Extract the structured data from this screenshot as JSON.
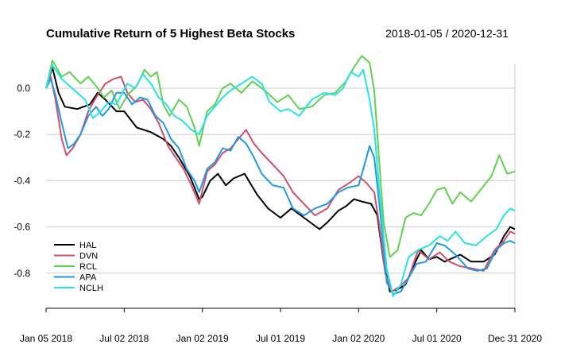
{
  "chart_data": {
    "type": "line",
    "title": "Cumulative Return of 5 Highest Beta Stocks",
    "date_range": "2018-01-05 / 2020-12-31",
    "xlabel": "",
    "ylabel": "",
    "ylim": [
      -0.92,
      0.14
    ],
    "yticks": [
      0.0,
      -0.2,
      -0.4,
      -0.6,
      -0.8
    ],
    "ytick_labels": [
      "0.0",
      "-0.2",
      "-0.4",
      "-0.6",
      "-0.8"
    ],
    "xticks": [
      {
        "t": 0.0,
        "label": "Jan 05 2018"
      },
      {
        "t": 0.5,
        "label": "Jul 02 2018"
      },
      {
        "t": 1.0,
        "label": "Jan 02 2019"
      },
      {
        "t": 1.5,
        "label": "Jul 01 2019"
      },
      {
        "t": 2.0,
        "label": "Jan 02 2020"
      },
      {
        "t": 2.5,
        "label": "Jul 01 2020"
      },
      {
        "t": 3.0,
        "label": "Dec 31 2020"
      }
    ],
    "grid": true,
    "legend_position": "bottom-left",
    "series": [
      {
        "name": "HAL",
        "color": "#000000",
        "points": [
          [
            0.0,
            0.0
          ],
          [
            0.04,
            0.09
          ],
          [
            0.08,
            -0.02
          ],
          [
            0.12,
            -0.08
          ],
          [
            0.2,
            -0.09
          ],
          [
            0.28,
            -0.07
          ],
          [
            0.33,
            -0.02
          ],
          [
            0.38,
            -0.05
          ],
          [
            0.45,
            -0.1
          ],
          [
            0.5,
            -0.1
          ],
          [
            0.58,
            -0.17
          ],
          [
            0.67,
            -0.19
          ],
          [
            0.75,
            -0.22
          ],
          [
            0.8,
            -0.25
          ],
          [
            0.85,
            -0.3
          ],
          [
            0.92,
            -0.38
          ],
          [
            0.98,
            -0.48
          ],
          [
            1.0,
            -0.47
          ],
          [
            1.05,
            -0.4
          ],
          [
            1.1,
            -0.37
          ],
          [
            1.15,
            -0.42
          ],
          [
            1.2,
            -0.39
          ],
          [
            1.27,
            -0.37
          ],
          [
            1.35,
            -0.46
          ],
          [
            1.42,
            -0.52
          ],
          [
            1.5,
            -0.56
          ],
          [
            1.57,
            -0.52
          ],
          [
            1.65,
            -0.56
          ],
          [
            1.75,
            -0.61
          ],
          [
            1.8,
            -0.58
          ],
          [
            1.87,
            -0.53
          ],
          [
            1.92,
            -0.51
          ],
          [
            1.97,
            -0.48
          ],
          [
            2.02,
            -0.49
          ],
          [
            2.08,
            -0.5
          ],
          [
            2.12,
            -0.55
          ],
          [
            2.16,
            -0.75
          ],
          [
            2.2,
            -0.88
          ],
          [
            2.25,
            -0.87
          ],
          [
            2.3,
            -0.85
          ],
          [
            2.35,
            -0.77
          ],
          [
            2.4,
            -0.7
          ],
          [
            2.45,
            -0.74
          ],
          [
            2.5,
            -0.73
          ],
          [
            2.55,
            -0.75
          ],
          [
            2.65,
            -0.72
          ],
          [
            2.72,
            -0.75
          ],
          [
            2.8,
            -0.75
          ],
          [
            2.87,
            -0.72
          ],
          [
            2.93,
            -0.64
          ],
          [
            2.97,
            -0.6
          ],
          [
            3.0,
            -0.61
          ]
        ]
      },
      {
        "name": "DVN",
        "color": "#d0506a",
        "points": [
          [
            0.0,
            0.0
          ],
          [
            0.03,
            0.05
          ],
          [
            0.06,
            -0.05
          ],
          [
            0.1,
            -0.22
          ],
          [
            0.13,
            -0.29
          ],
          [
            0.17,
            -0.26
          ],
          [
            0.22,
            -0.2
          ],
          [
            0.27,
            -0.1
          ],
          [
            0.32,
            -0.04
          ],
          [
            0.38,
            0.02
          ],
          [
            0.43,
            0.04
          ],
          [
            0.48,
            0.05
          ],
          [
            0.52,
            -0.02
          ],
          [
            0.57,
            -0.06
          ],
          [
            0.62,
            -0.05
          ],
          [
            0.67,
            -0.09
          ],
          [
            0.72,
            -0.15
          ],
          [
            0.78,
            -0.25
          ],
          [
            0.83,
            -0.3
          ],
          [
            0.88,
            -0.35
          ],
          [
            0.93,
            -0.42
          ],
          [
            0.98,
            -0.5
          ],
          [
            1.03,
            -0.36
          ],
          [
            1.08,
            -0.33
          ],
          [
            1.13,
            -0.28
          ],
          [
            1.18,
            -0.26
          ],
          [
            1.23,
            -0.22
          ],
          [
            1.28,
            -0.18
          ],
          [
            1.33,
            -0.24
          ],
          [
            1.38,
            -0.28
          ],
          [
            1.45,
            -0.33
          ],
          [
            1.52,
            -0.38
          ],
          [
            1.58,
            -0.45
          ],
          [
            1.65,
            -0.5
          ],
          [
            1.72,
            -0.55
          ],
          [
            1.8,
            -0.52
          ],
          [
            1.87,
            -0.44
          ],
          [
            1.94,
            -0.41
          ],
          [
            2.0,
            -0.38
          ],
          [
            2.05,
            -0.41
          ],
          [
            2.1,
            -0.45
          ],
          [
            2.13,
            -0.58
          ],
          [
            2.17,
            -0.8
          ],
          [
            2.21,
            -0.88
          ],
          [
            2.26,
            -0.86
          ],
          [
            2.32,
            -0.82
          ],
          [
            2.38,
            -0.7
          ],
          [
            2.45,
            -0.74
          ],
          [
            2.52,
            -0.71
          ],
          [
            2.58,
            -0.75
          ],
          [
            2.65,
            -0.77
          ],
          [
            2.73,
            -0.78
          ],
          [
            2.8,
            -0.79
          ],
          [
            2.87,
            -0.7
          ],
          [
            2.93,
            -0.66
          ],
          [
            2.97,
            -0.62
          ],
          [
            3.0,
            -0.63
          ]
        ]
      },
      {
        "name": "RCL",
        "color": "#61d04f",
        "points": [
          [
            0.0,
            0.0
          ],
          [
            0.04,
            0.12
          ],
          [
            0.1,
            0.05
          ],
          [
            0.15,
            0.07
          ],
          [
            0.22,
            0.02
          ],
          [
            0.27,
            0.05
          ],
          [
            0.32,
            0.01
          ],
          [
            0.37,
            -0.04
          ],
          [
            0.42,
            -0.01
          ],
          [
            0.47,
            -0.09
          ],
          [
            0.52,
            -0.03
          ],
          [
            0.58,
            0.01
          ],
          [
            0.63,
            0.08
          ],
          [
            0.67,
            0.05
          ],
          [
            0.71,
            0.07
          ],
          [
            0.75,
            -0.07
          ],
          [
            0.79,
            -0.12
          ],
          [
            0.85,
            -0.05
          ],
          [
            0.9,
            -0.08
          ],
          [
            0.95,
            -0.17
          ],
          [
            0.98,
            -0.25
          ],
          [
            1.03,
            -0.1
          ],
          [
            1.08,
            -0.07
          ],
          [
            1.13,
            0.0
          ],
          [
            1.18,
            0.02
          ],
          [
            1.25,
            -0.02
          ],
          [
            1.32,
            0.03
          ],
          [
            1.4,
            -0.01
          ],
          [
            1.48,
            -0.06
          ],
          [
            1.55,
            -0.03
          ],
          [
            1.62,
            -0.09
          ],
          [
            1.7,
            -0.08
          ],
          [
            1.78,
            -0.03
          ],
          [
            1.85,
            -0.02
          ],
          [
            1.92,
            0.03
          ],
          [
            1.97,
            0.09
          ],
          [
            2.02,
            0.14
          ],
          [
            2.07,
            0.11
          ],
          [
            2.1,
            -0.01
          ],
          [
            2.13,
            -0.3
          ],
          [
            2.16,
            -0.58
          ],
          [
            2.2,
            -0.73
          ],
          [
            2.25,
            -0.7
          ],
          [
            2.3,
            -0.56
          ],
          [
            2.35,
            -0.54
          ],
          [
            2.4,
            -0.55
          ],
          [
            2.45,
            -0.5
          ],
          [
            2.5,
            -0.44
          ],
          [
            2.55,
            -0.43
          ],
          [
            2.6,
            -0.5
          ],
          [
            2.65,
            -0.45
          ],
          [
            2.72,
            -0.49
          ],
          [
            2.78,
            -0.44
          ],
          [
            2.85,
            -0.38
          ],
          [
            2.9,
            -0.29
          ],
          [
            2.95,
            -0.37
          ],
          [
            3.0,
            -0.36
          ]
        ]
      },
      {
        "name": "APA",
        "color": "#2297e6",
        "points": [
          [
            0.0,
            0.0
          ],
          [
            0.03,
            0.04
          ],
          [
            0.06,
            -0.03
          ],
          [
            0.1,
            -0.15
          ],
          [
            0.14,
            -0.26
          ],
          [
            0.18,
            -0.24
          ],
          [
            0.22,
            -0.2
          ],
          [
            0.27,
            -0.12
          ],
          [
            0.32,
            -0.08
          ],
          [
            0.36,
            -0.12
          ],
          [
            0.4,
            -0.09
          ],
          [
            0.45,
            -0.02
          ],
          [
            0.5,
            -0.02
          ],
          [
            0.55,
            -0.07
          ],
          [
            0.6,
            -0.04
          ],
          [
            0.65,
            -0.05
          ],
          [
            0.7,
            -0.12
          ],
          [
            0.75,
            -0.15
          ],
          [
            0.8,
            -0.22
          ],
          [
            0.85,
            -0.26
          ],
          [
            0.9,
            -0.35
          ],
          [
            0.95,
            -0.4
          ],
          [
            0.98,
            -0.45
          ],
          [
            1.03,
            -0.35
          ],
          [
            1.08,
            -0.32
          ],
          [
            1.13,
            -0.26
          ],
          [
            1.18,
            -0.27
          ],
          [
            1.23,
            -0.21
          ],
          [
            1.28,
            -0.24
          ],
          [
            1.33,
            -0.3
          ],
          [
            1.38,
            -0.37
          ],
          [
            1.45,
            -0.42
          ],
          [
            1.52,
            -0.43
          ],
          [
            1.58,
            -0.52
          ],
          [
            1.65,
            -0.55
          ],
          [
            1.72,
            -0.52
          ],
          [
            1.8,
            -0.5
          ],
          [
            1.87,
            -0.45
          ],
          [
            1.93,
            -0.43
          ],
          [
            2.0,
            -0.42
          ],
          [
            2.03,
            -0.35
          ],
          [
            2.07,
            -0.25
          ],
          [
            2.1,
            -0.3
          ],
          [
            2.14,
            -0.55
          ],
          [
            2.18,
            -0.84
          ],
          [
            2.22,
            -0.89
          ],
          [
            2.27,
            -0.88
          ],
          [
            2.32,
            -0.82
          ],
          [
            2.37,
            -0.76
          ],
          [
            2.43,
            -0.75
          ],
          [
            2.5,
            -0.67
          ],
          [
            2.55,
            -0.68
          ],
          [
            2.62,
            -0.72
          ],
          [
            2.7,
            -0.78
          ],
          [
            2.76,
            -0.79
          ],
          [
            2.82,
            -0.78
          ],
          [
            2.88,
            -0.7
          ],
          [
            2.93,
            -0.67
          ],
          [
            2.97,
            -0.66
          ],
          [
            3.0,
            -0.67
          ]
        ]
      },
      {
        "name": "NCLH",
        "color": "#28e2e5",
        "points": [
          [
            0.0,
            0.0
          ],
          [
            0.04,
            0.1
          ],
          [
            0.1,
            0.04
          ],
          [
            0.15,
            0.01
          ],
          [
            0.2,
            -0.02
          ],
          [
            0.25,
            -0.05
          ],
          [
            0.3,
            -0.13
          ],
          [
            0.35,
            -0.1
          ],
          [
            0.4,
            -0.06
          ],
          [
            0.45,
            -0.07
          ],
          [
            0.52,
            0.02
          ],
          [
            0.57,
            0.0
          ],
          [
            0.62,
            0.06
          ],
          [
            0.67,
            0.02
          ],
          [
            0.72,
            -0.04
          ],
          [
            0.77,
            -0.07
          ],
          [
            0.82,
            -0.12
          ],
          [
            0.87,
            -0.14
          ],
          [
            0.93,
            -0.18
          ],
          [
            0.98,
            -0.2
          ],
          [
            1.03,
            -0.12
          ],
          [
            1.08,
            -0.08
          ],
          [
            1.13,
            -0.04
          ],
          [
            1.18,
            -0.01
          ],
          [
            1.25,
            0.02
          ],
          [
            1.32,
            0.05
          ],
          [
            1.38,
            0.02
          ],
          [
            1.43,
            -0.06
          ],
          [
            1.5,
            -0.1
          ],
          [
            1.55,
            -0.09
          ],
          [
            1.62,
            -0.12
          ],
          [
            1.7,
            -0.05
          ],
          [
            1.78,
            -0.02
          ],
          [
            1.85,
            -0.03
          ],
          [
            1.9,
            0.0
          ],
          [
            1.95,
            0.07
          ],
          [
            2.0,
            0.05
          ],
          [
            2.03,
            0.08
          ],
          [
            2.07,
            -0.05
          ],
          [
            2.1,
            -0.18
          ],
          [
            2.14,
            -0.5
          ],
          [
            2.18,
            -0.78
          ],
          [
            2.22,
            -0.9
          ],
          [
            2.27,
            -0.85
          ],
          [
            2.32,
            -0.73
          ],
          [
            2.38,
            -0.7
          ],
          [
            2.45,
            -0.68
          ],
          [
            2.52,
            -0.64
          ],
          [
            2.57,
            -0.66
          ],
          [
            2.62,
            -0.62
          ],
          [
            2.68,
            -0.67
          ],
          [
            2.75,
            -0.68
          ],
          [
            2.82,
            -0.64
          ],
          [
            2.88,
            -0.61
          ],
          [
            2.93,
            -0.55
          ],
          [
            2.97,
            -0.52
          ],
          [
            3.0,
            -0.53
          ]
        ]
      }
    ]
  }
}
